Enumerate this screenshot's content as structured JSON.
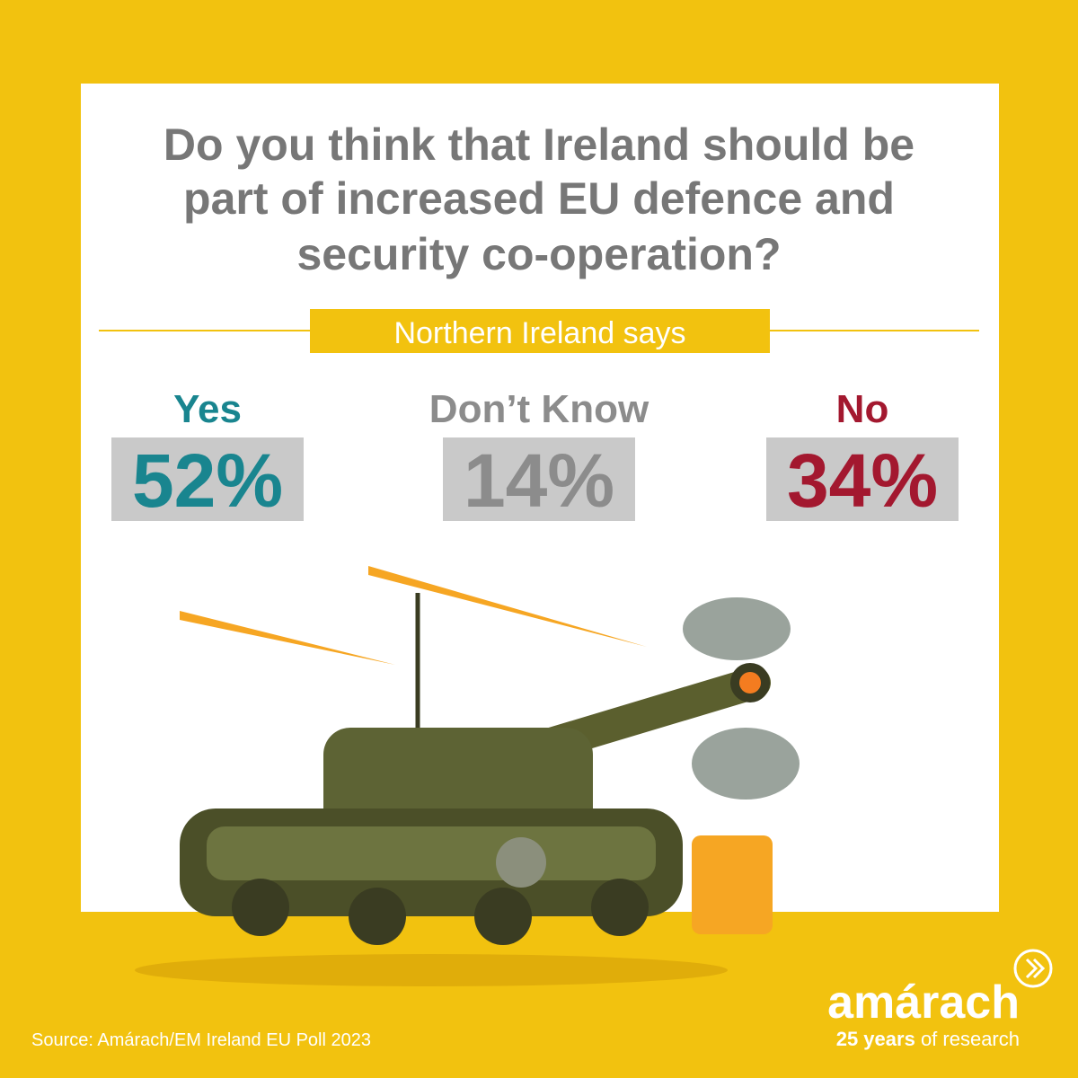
{
  "header": {
    "title_lines": [
      "Do you think that Ireland should be",
      "part of increased EU defence and",
      "security co-operation?"
    ],
    "banner": "Northern Ireland says"
  },
  "results": [
    {
      "label": "Yes",
      "value": "52%",
      "color": "#19858f"
    },
    {
      "label": "Don’t Know",
      "value": "14%",
      "color": "#8c8c8c"
    },
    {
      "label": "No",
      "value": "34%",
      "color": "#a3182f"
    }
  ],
  "footer": {
    "source": "Source: Amárach/EM Ireland EU Poll 2023",
    "brand": "amárach",
    "tagline_bold": "25 years",
    "tagline_rest": "of research"
  }
}
